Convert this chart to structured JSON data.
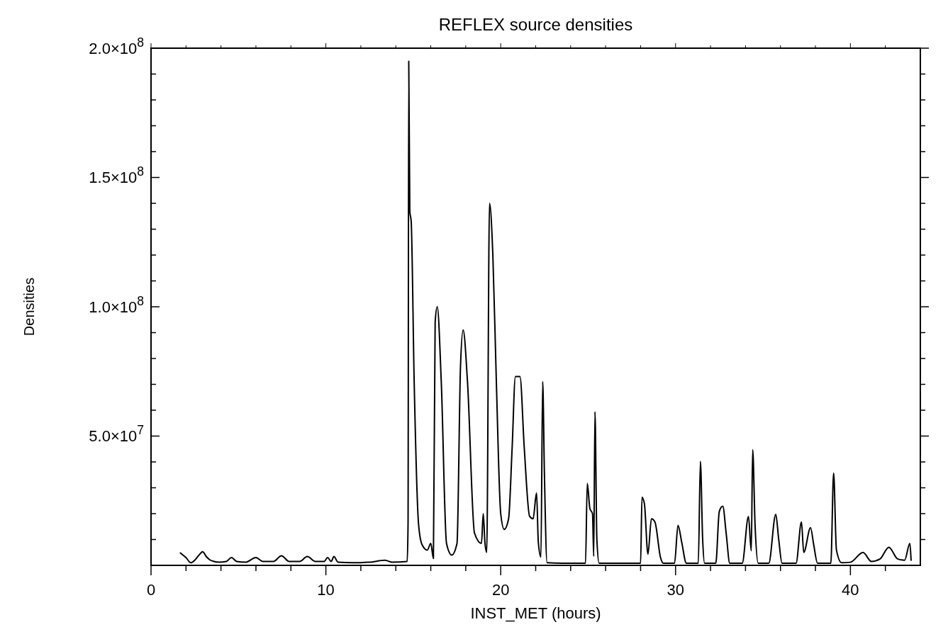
{
  "chart_data": {
    "type": "line",
    "title": "REFLEX source densities",
    "xlabel": "INST_MET (hours)",
    "ylabel": "Densities",
    "xlim": [
      0,
      44
    ],
    "ylim": [
      0,
      200000000
    ],
    "xticks": [
      0,
      {
        "value": 2,
        "label": null
      },
      {
        "value": 4,
        "label": null
      },
      {
        "value": 6,
        "label": null
      },
      {
        "value": 8,
        "label": null
      },
      10,
      {
        "value": 12,
        "label": null
      },
      {
        "value": 14,
        "label": null
      },
      {
        "value": 16,
        "label": null
      },
      {
        "value": 18,
        "label": null
      },
      20,
      {
        "value": 22,
        "label": null
      },
      {
        "value": 24,
        "label": null
      },
      {
        "value": 26,
        "label": null
      },
      {
        "value": 28,
        "label": null
      },
      30,
      {
        "value": 32,
        "label": null
      },
      {
        "value": 34,
        "label": null
      },
      {
        "value": 36,
        "label": null
      },
      {
        "value": 38,
        "label": null
      },
      40,
      {
        "value": 42,
        "label": null
      }
    ],
    "yticks": [
      {
        "value": 10000000,
        "label": null
      },
      {
        "value": 20000000,
        "label": null
      },
      {
        "value": 30000000,
        "label": null
      },
      {
        "value": 40000000,
        "label": null
      },
      {
        "value": 50000000,
        "label": "5.0×10$^{7}$"
      },
      {
        "value": 60000000,
        "label": null
      },
      {
        "value": 70000000,
        "label": null
      },
      {
        "value": 80000000,
        "label": null
      },
      {
        "value": 90000000,
        "label": null
      },
      {
        "value": 100000000,
        "label": "1.0×10$^{8}$"
      },
      {
        "value": 110000000,
        "label": null
      },
      {
        "value": 120000000,
        "label": null
      },
      {
        "value": 130000000,
        "label": null
      },
      {
        "value": 140000000,
        "label": null
      },
      {
        "value": 150000000,
        "label": "1.5×10$^{8}$"
      },
      {
        "value": 160000000,
        "label": null
      },
      {
        "value": 170000000,
        "label": null
      },
      {
        "value": 180000000,
        "label": null
      },
      {
        "value": 190000000,
        "label": null
      },
      {
        "value": 200000000,
        "label": "2.0×10$^{8}$"
      }
    ],
    "grid": false,
    "marker": "none",
    "line_style": "solid",
    "series": [
      {
        "color": "#000000",
        "x": [
          1.68,
          2.0,
          2.28,
          2.5,
          2.75,
          2.95,
          3.15,
          3.35,
          3.6,
          3.9,
          4.3,
          4.6,
          4.9,
          5.4,
          6.0,
          6.4,
          7.0,
          7.46,
          7.9,
          8.5,
          8.94,
          9.4,
          9.9,
          10.1,
          10.3,
          10.46,
          10.7,
          11.5,
          12.5,
          13.37,
          13.8,
          14.65,
          14.7,
          14.74,
          14.8,
          14.88,
          15.05,
          15.3,
          15.5,
          15.8,
          16.0,
          16.15,
          16.25,
          16.37,
          16.6,
          16.9,
          17.2,
          17.5,
          17.7,
          17.85,
          18.1,
          18.5,
          18.9,
          19.0,
          19.1,
          19.2,
          19.36,
          19.55,
          19.75,
          20.0,
          20.2,
          20.45,
          20.65,
          20.84,
          21.1,
          21.35,
          21.65,
          21.85,
          22.05,
          22.15,
          22.3,
          22.4,
          22.5,
          22.65,
          23.5,
          24.5,
          24.85,
          24.95,
          25.1,
          25.25,
          25.32,
          25.39,
          25.5,
          25.63,
          26.5,
          27.5,
          28.0,
          28.08,
          28.22,
          28.42,
          28.62,
          28.82,
          29.14,
          29.3,
          29.94,
          30.14,
          30.35,
          30.62,
          31.3,
          31.42,
          31.55,
          31.66,
          32.3,
          32.5,
          32.7,
          32.9,
          33.1,
          33.81,
          34.17,
          34.33,
          34.41,
          34.55,
          34.73,
          35.33,
          35.73,
          35.9,
          36.09,
          36.89,
          37.2,
          37.33,
          37.72,
          37.9,
          38.12,
          38.88,
          39.04,
          39.2,
          39.5,
          40.0,
          40.72,
          41.2,
          41.7,
          42.2,
          42.7,
          43.1,
          43.4,
          43.47
        ],
        "values": [
          4800000,
          3000000,
          1000000,
          2000000,
          4000000,
          5300000,
          3500000,
          2200000,
          1500000,
          1200000,
          1500000,
          3000000,
          1500000,
          1200000,
          3000000,
          1500000,
          1500000,
          3700000,
          1500000,
          1500000,
          3400000,
          1500000,
          1500000,
          3000000,
          1500000,
          3400000,
          1200000,
          1000000,
          1200000,
          2000000,
          1200000,
          1500000,
          16000000,
          195000000,
          137000000,
          133000000,
          71000000,
          16000000,
          8000000,
          5900000,
          8500000,
          2700000,
          94000000,
          100000000,
          71000000,
          8500000,
          4000000,
          8500000,
          77000000,
          91000000,
          71000000,
          12500000,
          8500000,
          20000000,
          8500000,
          5000000,
          140000000,
          120000000,
          71000000,
          20000000,
          13900000,
          18000000,
          45000000,
          73000000,
          73000000,
          45000000,
          19000000,
          18000000,
          28000000,
          9000000,
          3200000,
          71000000,
          35000000,
          1000000,
          800000,
          800000,
          800000,
          31700000,
          22000000,
          20000000,
          3500000,
          59400000,
          10000000,
          800000,
          800000,
          800000,
          800000,
          26400000,
          23700000,
          4300000,
          18000000,
          16800000,
          3000000,
          800000,
          800000,
          15500000,
          9000000,
          800000,
          800000,
          40200000,
          10000000,
          800000,
          800000,
          20800000,
          22900000,
          12000000,
          800000,
          800000,
          18900000,
          5600000,
          44700000,
          15000000,
          800000,
          800000,
          19700000,
          10000000,
          800000,
          800000,
          16800000,
          5000000,
          14600000,
          8000000,
          800000,
          800000,
          35700000,
          6000000,
          1000000,
          1200000,
          5000000,
          1500000,
          2500000,
          7000000,
          2500000,
          2000000,
          8500000,
          2000000
        ]
      }
    ]
  }
}
